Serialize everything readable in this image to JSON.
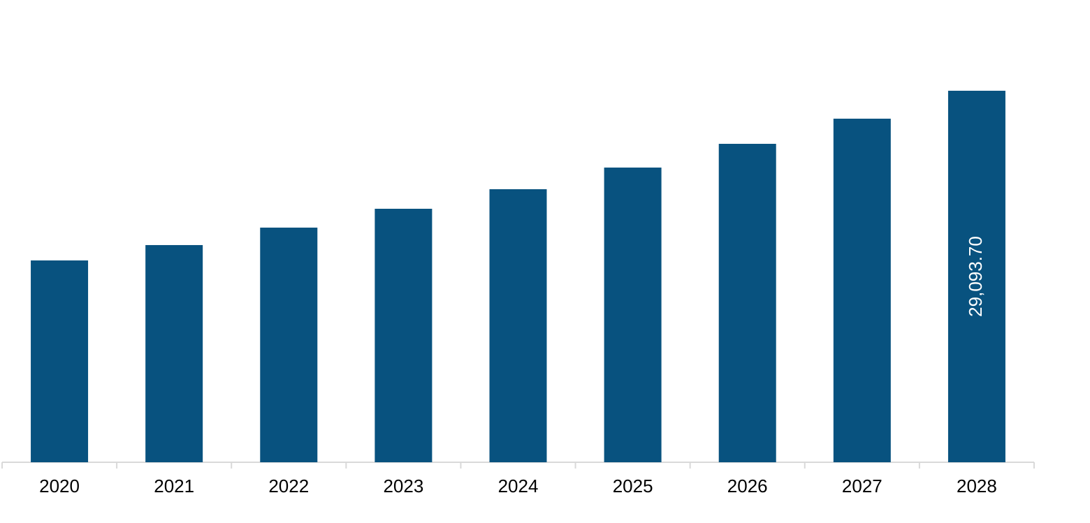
{
  "chart_data": {
    "type": "bar",
    "categories": [
      "2020",
      "2021",
      "2022",
      "2023",
      "2024",
      "2025",
      "2026",
      "2027",
      "2028"
    ],
    "values": [
      15805,
      17008,
      18375,
      19851,
      21383,
      23078,
      24937,
      26906,
      29093.7
    ],
    "value_labels": [
      null,
      null,
      null,
      null,
      null,
      null,
      null,
      null,
      "29,093.70"
    ],
    "color": "#08527f",
    "ylim": [
      0,
      36200
    ]
  }
}
